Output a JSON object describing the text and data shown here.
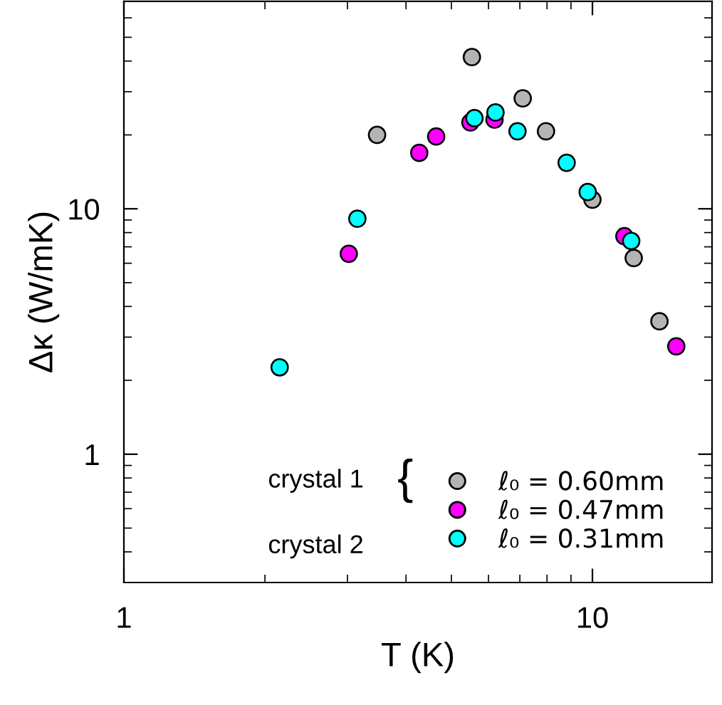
{
  "chart_data": {
    "type": "scatter",
    "xlabel": "T (K)",
    "ylabel": "Δκ (W/mK)",
    "log": "xy",
    "xlim": [
      1,
      18
    ],
    "ylim": [
      0.3,
      70
    ],
    "xticks": [
      1,
      10
    ],
    "yticks": [
      1,
      10
    ],
    "grid": false,
    "legend": "bottom right",
    "marker": "circle",
    "annotations": [
      "crystal 1",
      "crystal 2",
      "{"
    ],
    "series": [
      {
        "name": "ℓ₀ = 0.60mm",
        "color": "#b4b4b4",
        "x": [
          3.47,
          5.53,
          7.1,
          7.96,
          10.0,
          12.25,
          13.9
        ],
        "values": [
          20.0,
          41.5,
          28.2,
          20.7,
          10.9,
          6.3,
          3.48
        ]
      },
      {
        "name": "ℓ₀ = 0.47mm",
        "color": "#ff00ff",
        "x": [
          3.02,
          4.27,
          4.64,
          5.49,
          6.18,
          11.7,
          15.1
        ],
        "values": [
          6.56,
          16.9,
          19.7,
          22.5,
          23.1,
          7.73,
          2.75
        ]
      },
      {
        "name": "ℓ₀ = 0.31mm",
        "color": "#00ffff",
        "x": [
          2.15,
          3.15,
          5.6,
          6.21,
          6.92,
          8.81,
          9.77,
          12.1
        ],
        "values": [
          2.26,
          9.11,
          23.4,
          24.7,
          20.7,
          15.4,
          11.7,
          7.39
        ]
      }
    ]
  }
}
